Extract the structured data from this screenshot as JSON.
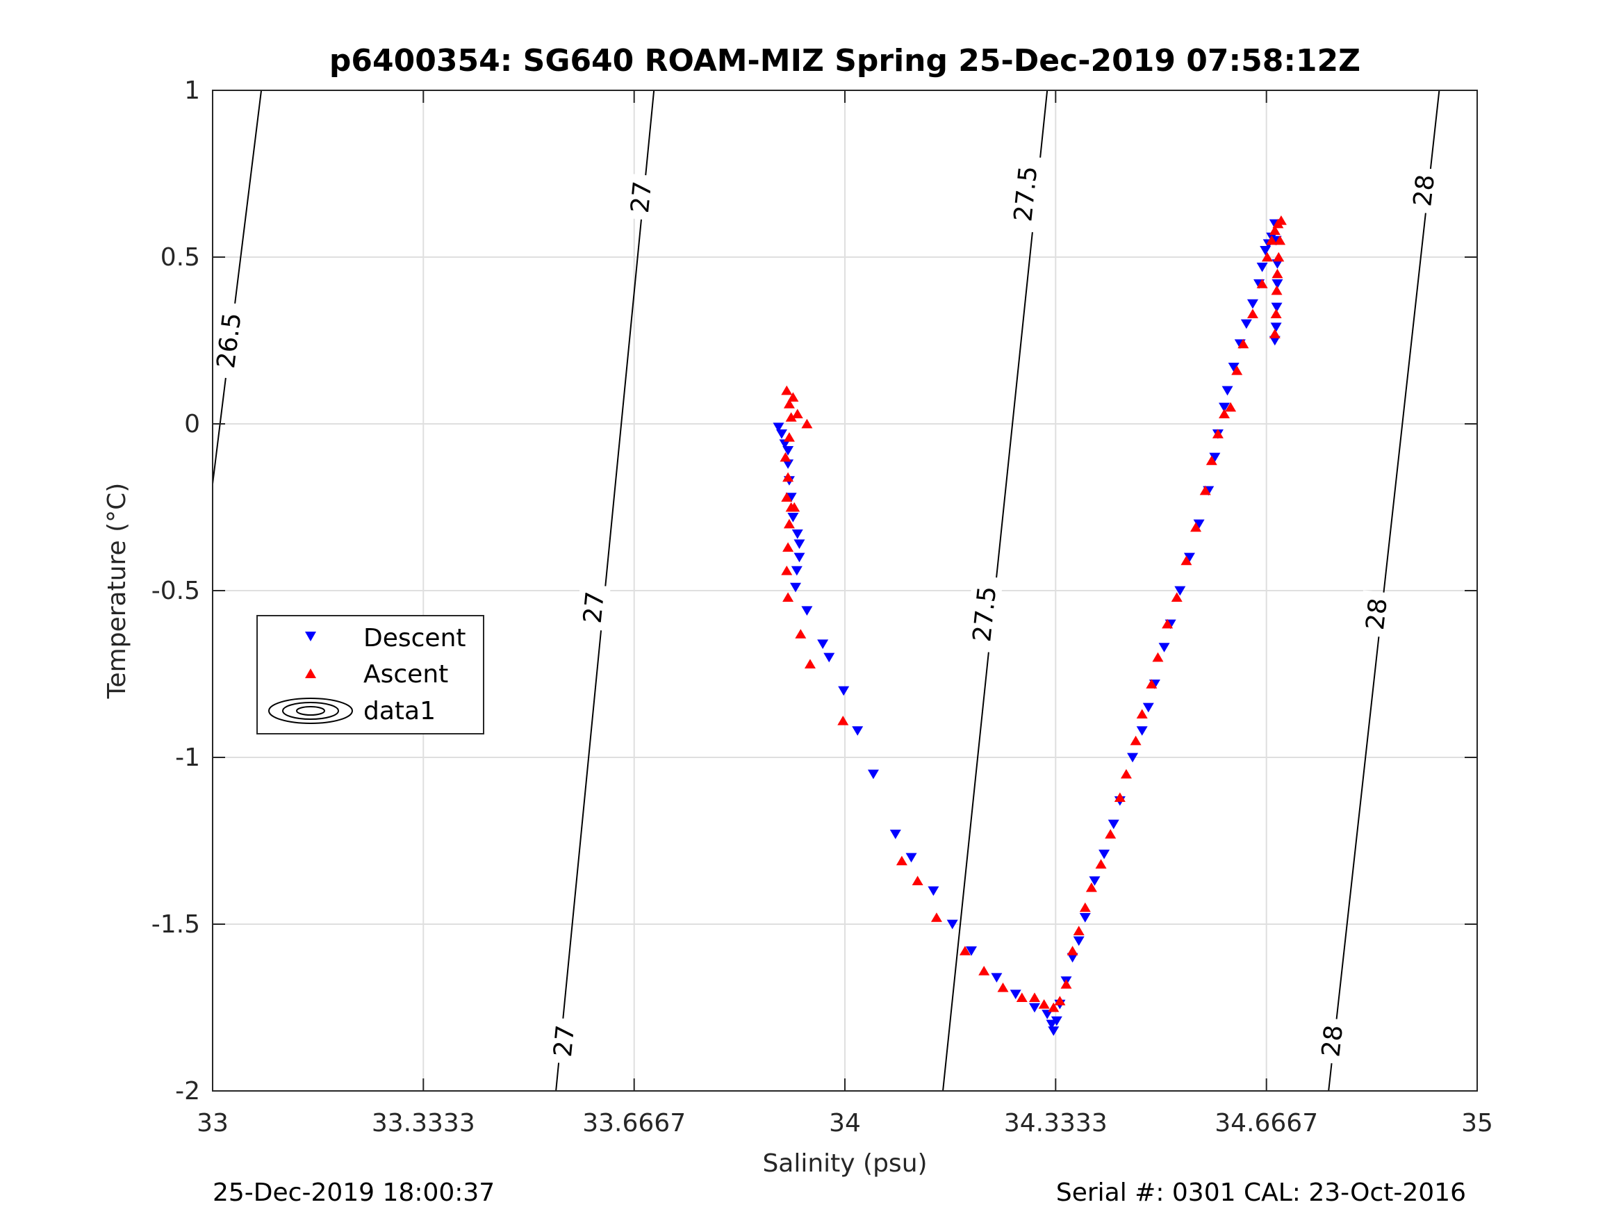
{
  "chart_data": {
    "type": "scatter",
    "title": "p6400354: SG640 ROAM-MIZ Spring 25-Dec-2019 07:58:12Z",
    "xlabel": "Salinity (psu)",
    "ylabel": "Temperature (°C)",
    "xlim": [
      33,
      35
    ],
    "ylim": [
      -2,
      1
    ],
    "xticks": [
      33,
      33.3333,
      33.6667,
      34,
      34.3333,
      34.6667,
      35
    ],
    "xtick_labels": [
      "33",
      "33.3333",
      "33.6667",
      "34",
      "34.3333",
      "34.6667",
      "35"
    ],
    "yticks": [
      -2,
      -1.5,
      -1,
      -0.5,
      0,
      0.5,
      1
    ],
    "ytick_labels": [
      "-2",
      "-1.5",
      "-1",
      "-0.5",
      "0",
      "0.5",
      "1"
    ],
    "grid": true,
    "legend_position": "left-middle",
    "legend": [
      "Descent",
      "Ascent",
      "data1"
    ],
    "density_contours": [
      {
        "label": "26.5",
        "line": [
          [
            33.0,
            -0.18
          ],
          [
            33.077,
            1.0
          ]
        ],
        "label_positions": [
          [
            33.025,
            0.25
          ]
        ]
      },
      {
        "label": "27",
        "line": [
          [
            33.543,
            -2.0
          ],
          [
            33.698,
            1.0
          ]
        ],
        "label_positions": [
          [
            33.555,
            -1.85
          ],
          [
            33.602,
            -0.55
          ],
          [
            33.677,
            0.68
          ]
        ]
      },
      {
        "label": "27.5",
        "line": [
          [
            34.155,
            -2.0
          ],
          [
            34.32,
            1.0
          ]
        ],
        "label_positions": [
          [
            34.22,
            -0.57
          ],
          [
            34.285,
            0.69
          ]
        ]
      },
      {
        "label": "28",
        "line": [
          [
            34.765,
            -2.0
          ],
          [
            34.94,
            1.0
          ]
        ],
        "label_positions": [
          [
            34.77,
            -1.85
          ],
          [
            34.84,
            -0.57
          ],
          [
            34.915,
            0.7
          ]
        ]
      }
    ],
    "series": [
      {
        "name": "Descent",
        "color": "#0000ff",
        "marker": "triangle-down",
        "points": [
          [
            33.895,
            -0.01
          ],
          [
            33.9,
            -0.03
          ],
          [
            33.905,
            -0.06
          ],
          [
            33.91,
            -0.08
          ],
          [
            33.91,
            -0.12
          ],
          [
            33.912,
            -0.17
          ],
          [
            33.915,
            -0.22
          ],
          [
            33.918,
            -0.28
          ],
          [
            33.925,
            -0.33
          ],
          [
            33.928,
            -0.36
          ],
          [
            33.928,
            -0.4
          ],
          [
            33.924,
            -0.44
          ],
          [
            33.922,
            -0.49
          ],
          [
            33.94,
            -0.56
          ],
          [
            33.965,
            -0.66
          ],
          [
            33.975,
            -0.7
          ],
          [
            33.998,
            -0.8
          ],
          [
            34.02,
            -0.92
          ],
          [
            34.045,
            -1.05
          ],
          [
            34.08,
            -1.23
          ],
          [
            34.105,
            -1.3
          ],
          [
            34.14,
            -1.4
          ],
          [
            34.17,
            -1.5
          ],
          [
            34.2,
            -1.58
          ],
          [
            34.24,
            -1.66
          ],
          [
            34.27,
            -1.71
          ],
          [
            34.3,
            -1.75
          ],
          [
            34.32,
            -1.77
          ],
          [
            34.327,
            -1.8
          ],
          [
            34.33,
            -1.82
          ],
          [
            34.335,
            -1.79
          ],
          [
            34.34,
            -1.74
          ],
          [
            34.35,
            -1.67
          ],
          [
            34.36,
            -1.6
          ],
          [
            34.37,
            -1.55
          ],
          [
            34.38,
            -1.48
          ],
          [
            34.395,
            -1.37
          ],
          [
            34.41,
            -1.29
          ],
          [
            34.425,
            -1.2
          ],
          [
            34.435,
            -1.13
          ],
          [
            34.455,
            -1.0
          ],
          [
            34.47,
            -0.92
          ],
          [
            34.48,
            -0.85
          ],
          [
            34.49,
            -0.78
          ],
          [
            34.505,
            -0.67
          ],
          [
            34.515,
            -0.6
          ],
          [
            34.53,
            -0.5
          ],
          [
            34.545,
            -0.4
          ],
          [
            34.56,
            -0.3
          ],
          [
            34.575,
            -0.2
          ],
          [
            34.585,
            -0.1
          ],
          [
            34.59,
            -0.03
          ],
          [
            34.6,
            0.05
          ],
          [
            34.605,
            0.1
          ],
          [
            34.615,
            0.17
          ],
          [
            34.625,
            0.24
          ],
          [
            34.635,
            0.3
          ],
          [
            34.645,
            0.36
          ],
          [
            34.655,
            0.42
          ],
          [
            34.66,
            0.47
          ],
          [
            34.665,
            0.52
          ],
          [
            34.67,
            0.54
          ],
          [
            34.675,
            0.56
          ],
          [
            34.68,
            0.6
          ],
          [
            34.682,
            0.55
          ],
          [
            34.684,
            0.48
          ],
          [
            34.684,
            0.42
          ],
          [
            34.683,
            0.35
          ],
          [
            34.682,
            0.29
          ],
          [
            34.68,
            0.25
          ]
        ]
      },
      {
        "name": "Ascent",
        "color": "#ff0000",
        "marker": "triangle-up",
        "points": [
          [
            33.908,
            0.1
          ],
          [
            33.912,
            0.06
          ],
          [
            33.915,
            0.02
          ],
          [
            33.918,
            0.08
          ],
          [
            33.925,
            0.03
          ],
          [
            33.912,
            -0.04
          ],
          [
            33.906,
            -0.1
          ],
          [
            33.91,
            -0.16
          ],
          [
            33.908,
            -0.22
          ],
          [
            33.915,
            -0.25
          ],
          [
            33.92,
            -0.25
          ],
          [
            33.912,
            -0.3
          ],
          [
            33.91,
            -0.37
          ],
          [
            33.908,
            -0.44
          ],
          [
            33.91,
            -0.52
          ],
          [
            33.94,
            0.0
          ],
          [
            33.93,
            -0.63
          ],
          [
            33.945,
            -0.72
          ],
          [
            33.997,
            -0.89
          ],
          [
            34.09,
            -1.31
          ],
          [
            34.115,
            -1.37
          ],
          [
            34.145,
            -1.48
          ],
          [
            34.19,
            -1.58
          ],
          [
            34.22,
            -1.64
          ],
          [
            34.25,
            -1.69
          ],
          [
            34.28,
            -1.72
          ],
          [
            34.3,
            -1.72
          ],
          [
            34.315,
            -1.74
          ],
          [
            34.33,
            -1.75
          ],
          [
            34.34,
            -1.73
          ],
          [
            34.35,
            -1.68
          ],
          [
            34.36,
            -1.58
          ],
          [
            34.37,
            -1.52
          ],
          [
            34.38,
            -1.45
          ],
          [
            34.39,
            -1.39
          ],
          [
            34.405,
            -1.32
          ],
          [
            34.42,
            -1.23
          ],
          [
            34.435,
            -1.12
          ],
          [
            34.445,
            -1.05
          ],
          [
            34.46,
            -0.95
          ],
          [
            34.47,
            -0.87
          ],
          [
            34.485,
            -0.78
          ],
          [
            34.495,
            -0.7
          ],
          [
            34.51,
            -0.6
          ],
          [
            34.525,
            -0.52
          ],
          [
            34.54,
            -0.41
          ],
          [
            34.555,
            -0.31
          ],
          [
            34.57,
            -0.2
          ],
          [
            34.58,
            -0.11
          ],
          [
            34.59,
            -0.03
          ],
          [
            34.6,
            0.03
          ],
          [
            34.61,
            0.05
          ],
          [
            34.62,
            0.16
          ],
          [
            34.63,
            0.24
          ],
          [
            34.645,
            0.33
          ],
          [
            34.66,
            0.42
          ],
          [
            34.668,
            0.5
          ],
          [
            34.675,
            0.55
          ],
          [
            34.68,
            0.58
          ],
          [
            34.685,
            0.6
          ],
          [
            34.69,
            0.61
          ],
          [
            34.688,
            0.55
          ],
          [
            34.686,
            0.5
          ],
          [
            34.684,
            0.45
          ],
          [
            34.683,
            0.4
          ],
          [
            34.682,
            0.33
          ],
          [
            34.68,
            0.27
          ]
        ]
      }
    ]
  },
  "footer": {
    "left": "25-Dec-2019 18:00:37",
    "right": "Serial #: 0301  CAL: 23-Oct-2016"
  }
}
